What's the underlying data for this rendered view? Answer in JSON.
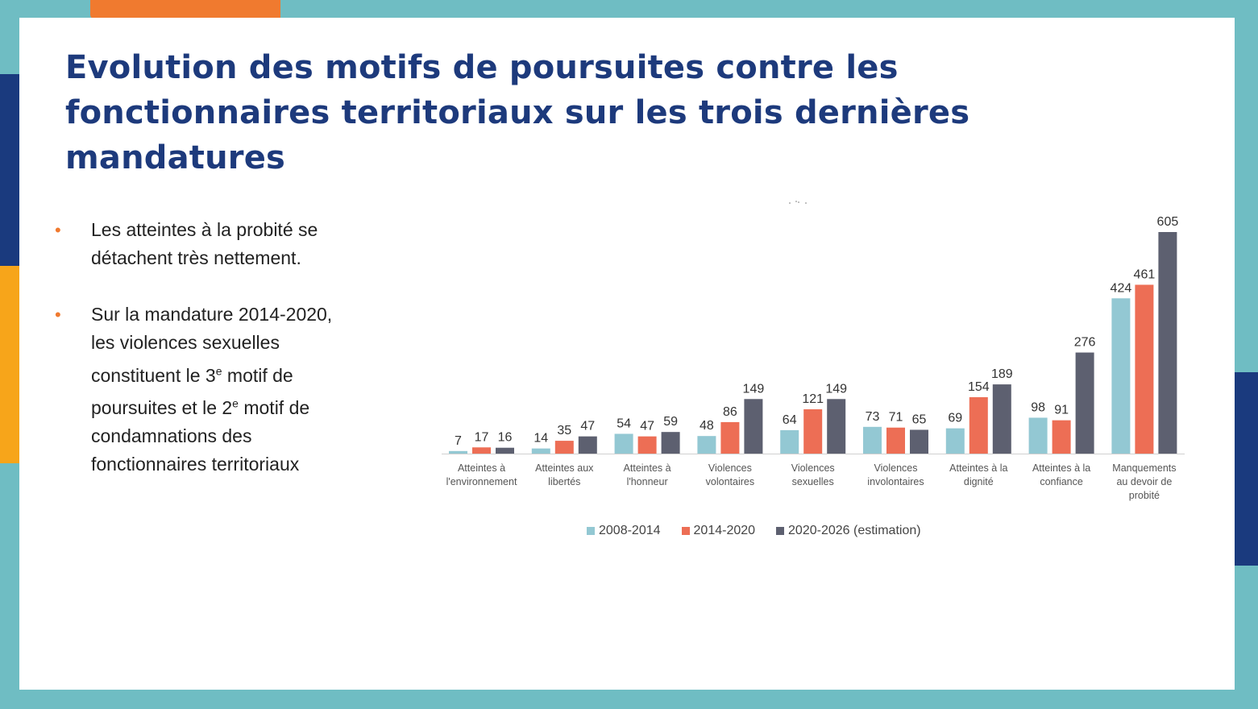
{
  "slide": {
    "title": "Evolution des  motifs de poursuites contre  les fonctionnaires territoriaux sur les trois dernières mandatures",
    "bullets": [
      {
        "text": "Les atteintes à la probité se détachent très nettement."
      },
      {
        "pre": "Sur la mandature 2014-2020, les violences sexuelles constituent le 3",
        "sup1": "e",
        "mid": " motif de poursuites et le 2",
        "sup2": "e",
        "post": " motif de condamnations des fonctionnaires territoriaux"
      }
    ]
  },
  "colors": {
    "background_frame": "#6fbdc3",
    "title": "#1d3a7c",
    "bullet": "#f07a2f"
  },
  "chart_data": {
    "type": "bar",
    "title": "",
    "xlabel": "",
    "ylabel": "",
    "ylim": [
      0,
      640
    ],
    "grid": false,
    "legend_position": "bottom",
    "categories": [
      [
        "Atteintes à",
        "l'environnement"
      ],
      [
        "Atteintes aux",
        "libertés"
      ],
      [
        "Atteintes à",
        "l'honneur"
      ],
      [
        "Violences",
        "volontaires"
      ],
      [
        "Violences",
        "sexuelles"
      ],
      [
        "Violences",
        "involontaires"
      ],
      [
        "Atteintes à la",
        "dignité"
      ],
      [
        "Atteintes à la",
        "confiance"
      ],
      [
        "Manquements",
        "au devoir de",
        "probité"
      ]
    ],
    "series": [
      {
        "name": "2008-2014",
        "color": "#93c8d3",
        "values": [
          7,
          14,
          54,
          48,
          64,
          73,
          69,
          98,
          424
        ]
      },
      {
        "name": "2014-2020",
        "color": "#ed6e55",
        "values": [
          17,
          35,
          47,
          86,
          121,
          71,
          154,
          91,
          461
        ]
      },
      {
        "name": "2020-2026 (estimation)",
        "color": "#5d6070",
        "values": [
          16,
          47,
          59,
          149,
          149,
          65,
          189,
          276,
          605
        ]
      }
    ]
  }
}
